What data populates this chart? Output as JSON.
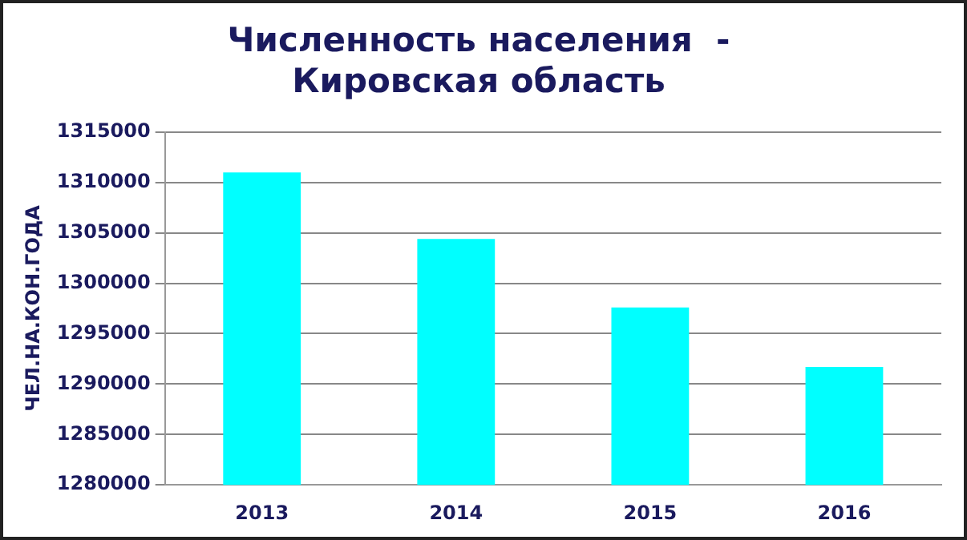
{
  "chart_data": {
    "type": "bar",
    "title": [
      "Численность населения  -",
      "Кировская область"
    ],
    "ylabel": "ЧЕЛ.НА.КОН.ГОДА",
    "categories": [
      "2013",
      "2014",
      "2015",
      "2016"
    ],
    "values": [
      1311000,
      1304400,
      1297600,
      1291700
    ],
    "color": "#00ffff",
    "ylim": [
      1280000,
      1315000
    ],
    "yticks": [
      1280000,
      1285000,
      1290000,
      1295000,
      1300000,
      1305000,
      1310000,
      1315000
    ],
    "grid": "y",
    "legend": false
  }
}
